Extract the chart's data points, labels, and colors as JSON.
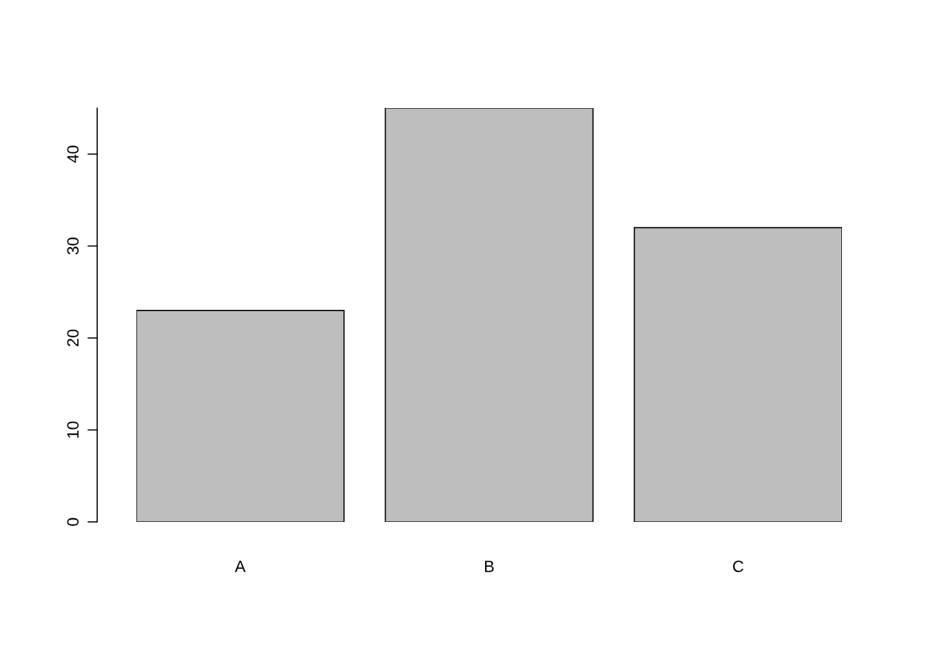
{
  "chart_data": {
    "type": "bar",
    "categories": [
      "A",
      "B",
      "C"
    ],
    "values": [
      23,
      45,
      32
    ],
    "color": "#bebebe",
    "ylim": [
      0,
      45
    ],
    "yticks": [
      0,
      10,
      20,
      30,
      40
    ],
    "grid": false,
    "legend": false
  }
}
